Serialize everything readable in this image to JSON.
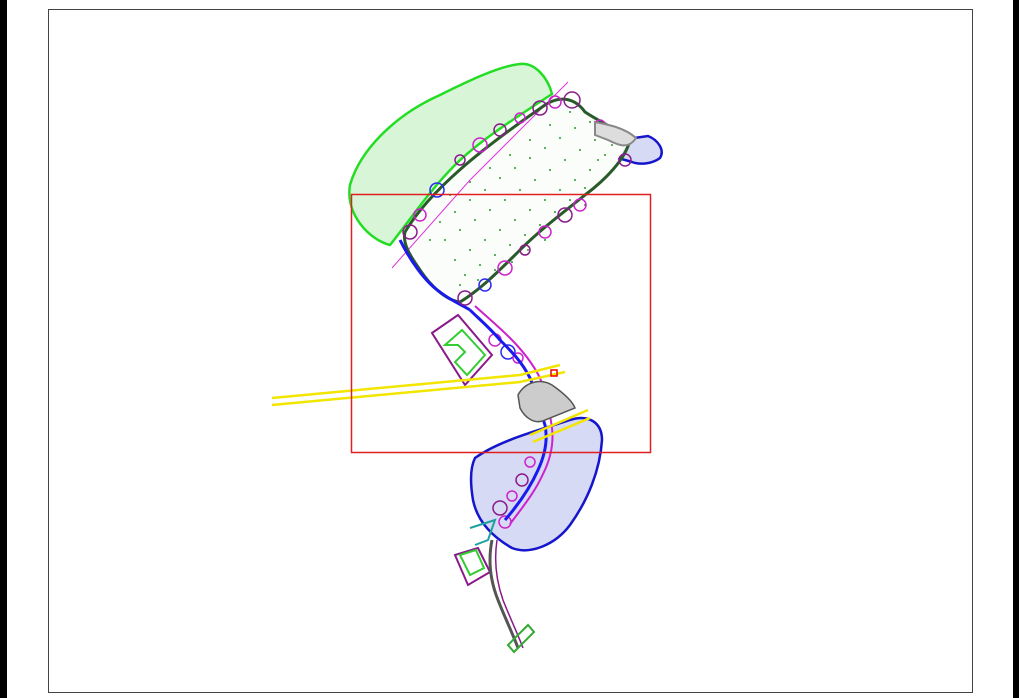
{
  "drawing": {
    "layers": {
      "frame": "#000000",
      "sheet_border": "#444444",
      "viewport": "#e02020",
      "wetland_green_fill": "#d8f5d8",
      "wetland_green_edge": "#22dd22",
      "wetland_blue_fill": "#d6daf5",
      "wetland_blue_edge": "#1515cc",
      "road": "#f2e600",
      "channel_dark": "#2a5a2a",
      "buffer_magenta": "#cc22cc",
      "flow_blue": "#1a1aee",
      "gravel_gray": "#888888",
      "structure_purple": "#8a1a8a",
      "structure_green": "#33cc33",
      "planting_dot": "#2a9a2a",
      "marker_red": "#ee0000"
    }
  }
}
